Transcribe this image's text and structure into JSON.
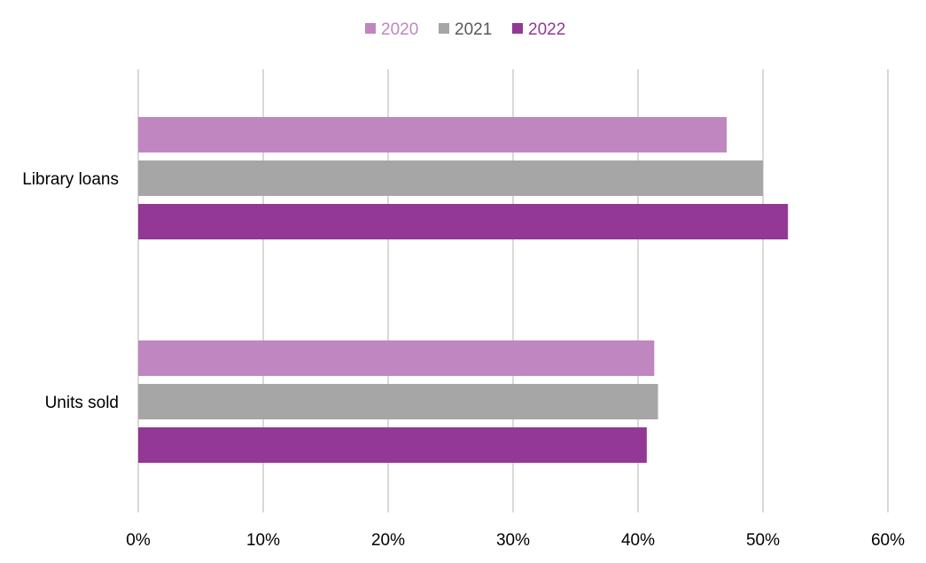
{
  "chart_data": {
    "type": "bar",
    "orientation": "horizontal",
    "categories": [
      "Library loans",
      "Units sold"
    ],
    "series": [
      {
        "name": "2020",
        "color": "#bf86c0",
        "values": [
          47.1,
          41.3
        ]
      },
      {
        "name": "2021",
        "color": "#a6a6a6",
        "values": [
          50.0,
          41.6
        ]
      },
      {
        "name": "2022",
        "color": "#933894",
        "values": [
          52.0,
          40.7
        ]
      }
    ],
    "xlim": [
      0,
      60
    ],
    "xticks": [
      "0%",
      "10%",
      "20%",
      "30%",
      "40%",
      "50%",
      "60%"
    ],
    "title": "",
    "xlabel": "",
    "ylabel": "",
    "grid": "vertical",
    "legend_position": "top-center"
  }
}
